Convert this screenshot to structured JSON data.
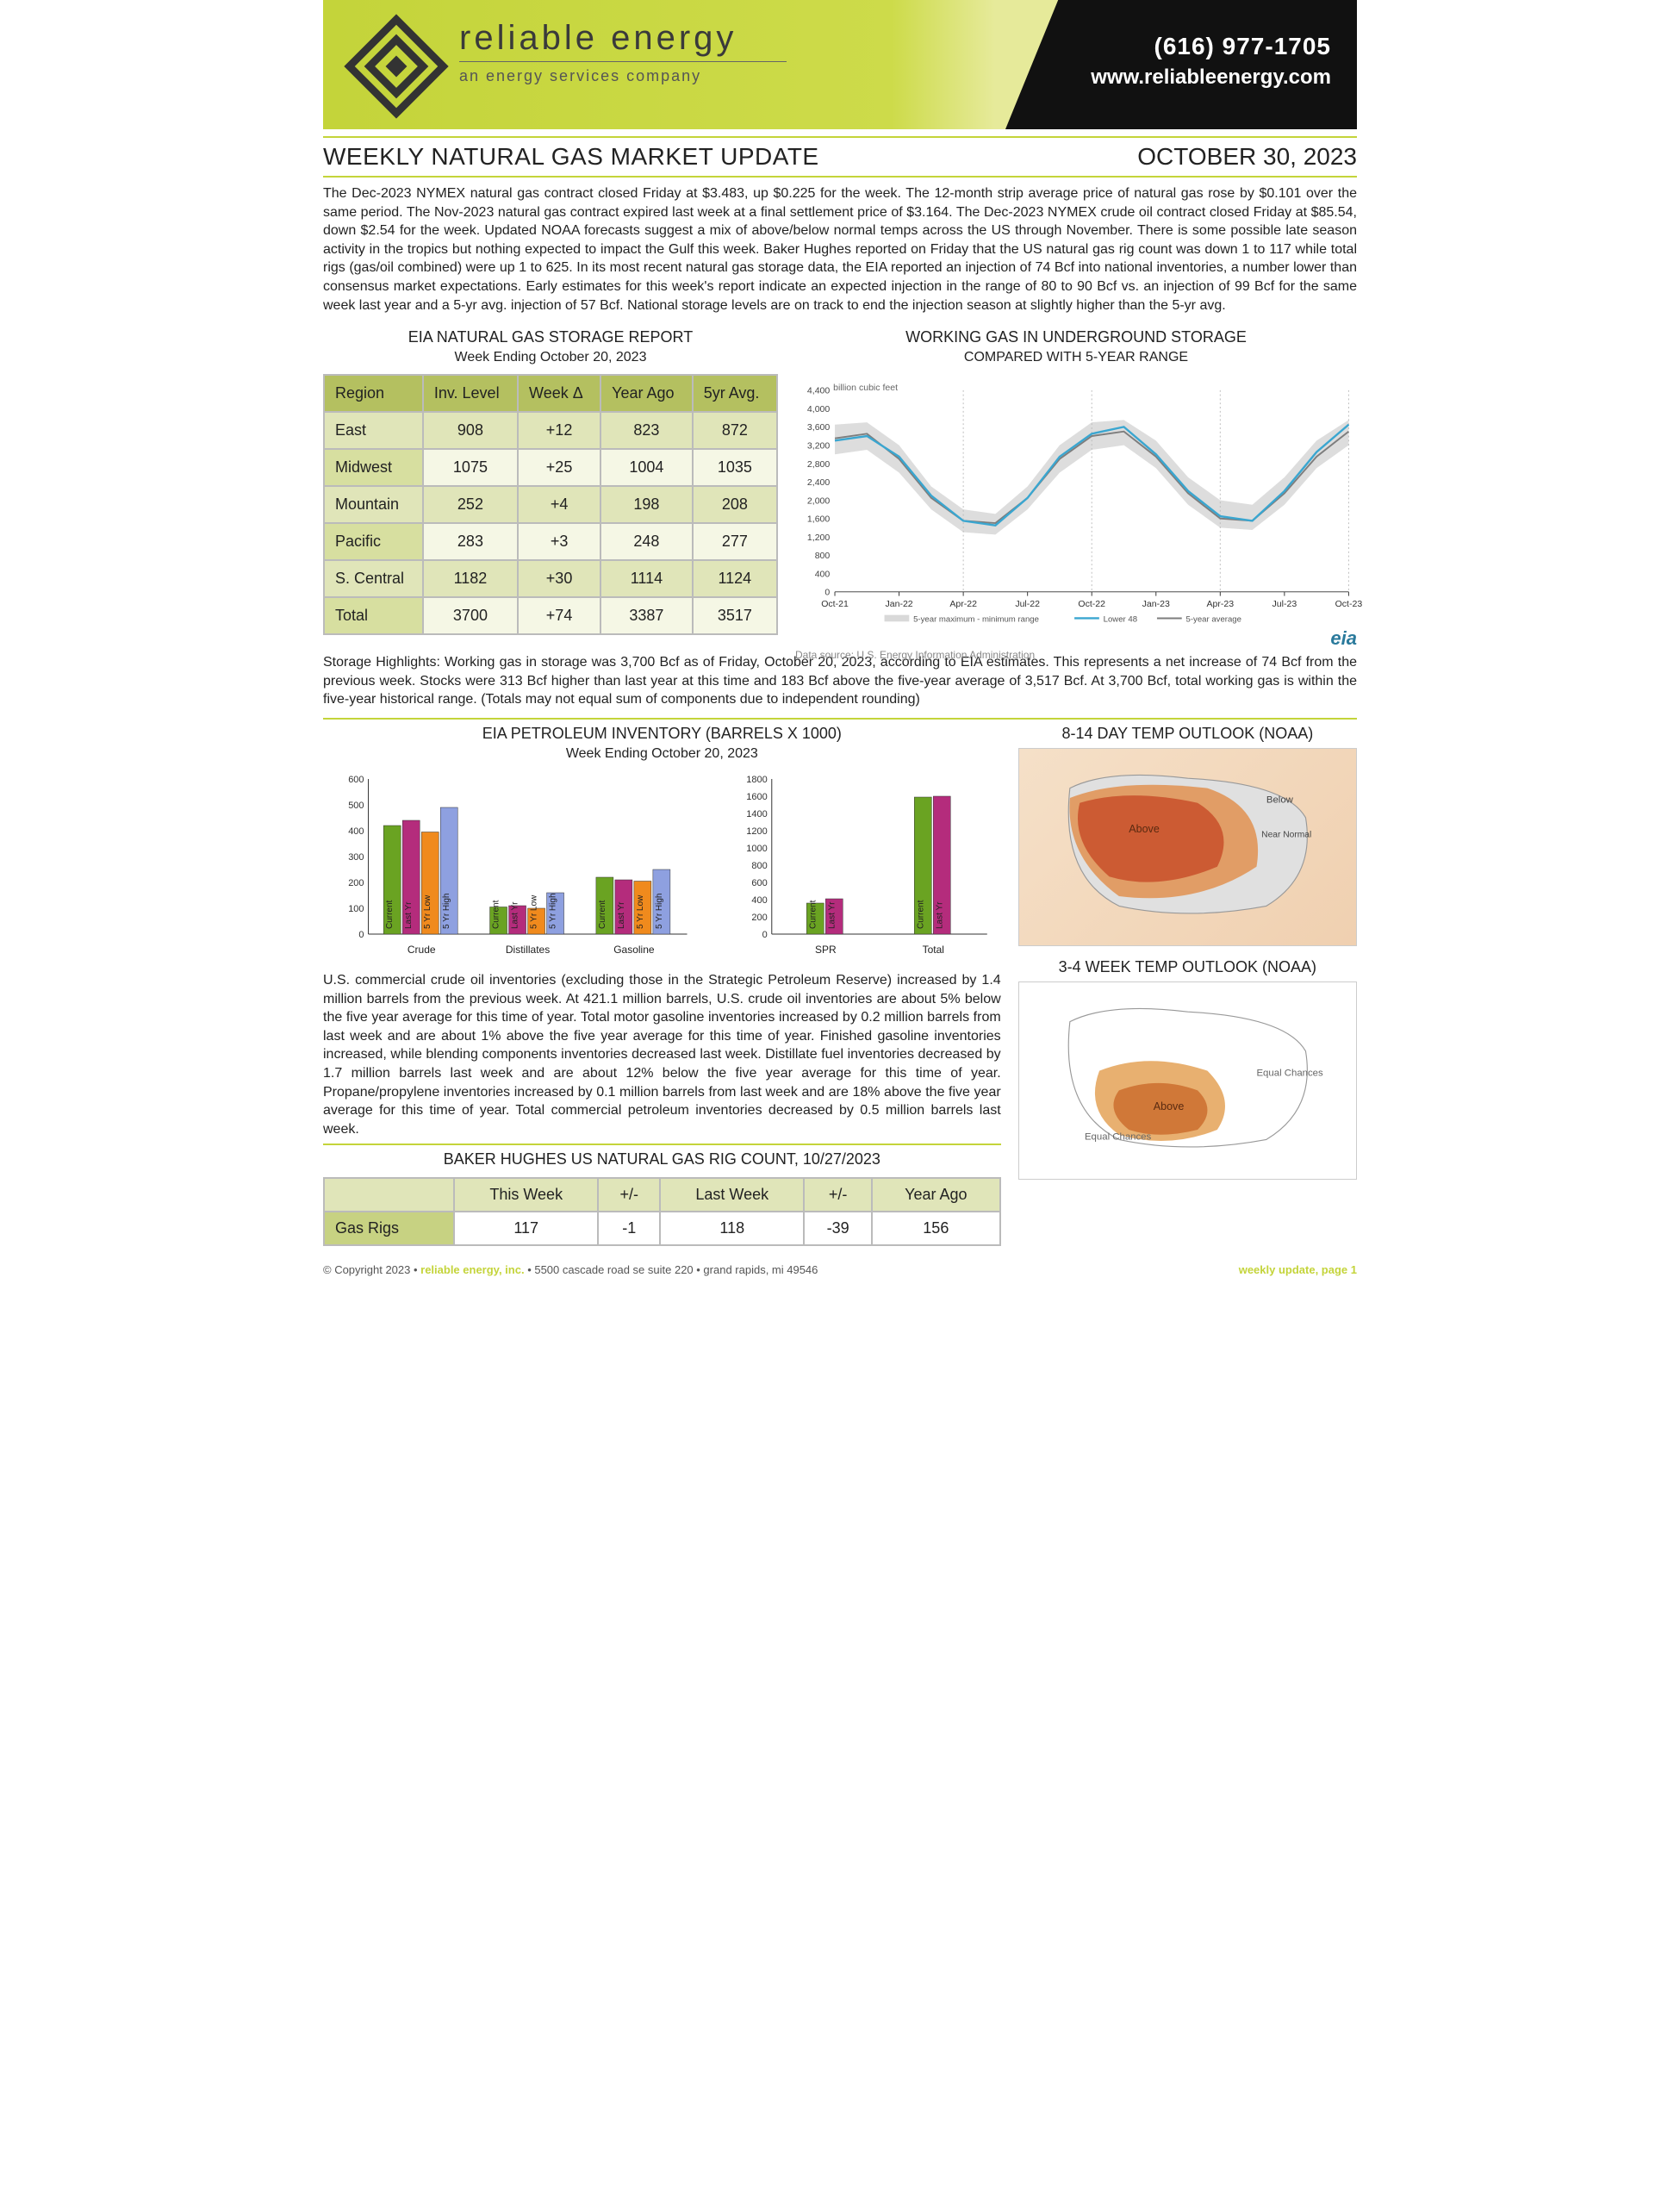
{
  "header": {
    "company": "reliable energy",
    "tagline": "an energy services company",
    "phone": "(616) 977-1705",
    "website": "www.reliableenergy.com"
  },
  "title": "WEEKLY NATURAL GAS MARKET UPDATE",
  "date": "OCTOBER 30, 2023",
  "lede": "The Dec-2023 NYMEX natural gas contract closed Friday at $3.483, up $0.225 for the week. The 12-month strip average price of natural gas rose by $0.101 over the same period. The Nov-2023 natural gas contract expired last week at a final settlement price of $3.164. The Dec-2023 NYMEX crude oil contract closed Friday at $85.54, down $2.54 for the week. Updated NOAA forecasts suggest a mix of above/below normal temps across the US through November. There is some possible late season activity in the tropics but nothing expected to impact the Gulf this week. Baker Hughes reported on Friday that the US natural gas rig count was down 1 to 117 while total rigs (gas/oil combined) were up 1 to 625. In its most recent natural gas storage data, the EIA reported an injection of 74 Bcf into national inventories, a number lower than consensus market expectations. Early estimates for this week's report indicate an expected injection in the range of 80 to 90 Bcf vs. an injection of 99 Bcf for the same week last year and a 5-yr avg. injection of 57 Bcf. National storage levels are on track to end the injection season at slightly higher than the 5-yr avg.",
  "storage_report": {
    "title": "EIA NATURAL GAS STORAGE REPORT",
    "subtitle": "Week Ending October 20, 2023",
    "columns": [
      "Region",
      "Inv. Level",
      "Week Δ",
      "Year Ago",
      "5yr Avg."
    ],
    "rows": [
      [
        "East",
        "908",
        "+12",
        "823",
        "872"
      ],
      [
        "Midwest",
        "1075",
        "+25",
        "1004",
        "1035"
      ],
      [
        "Mountain",
        "252",
        "+4",
        "198",
        "208"
      ],
      [
        "Pacific",
        "283",
        "+3",
        "248",
        "277"
      ],
      [
        "S. Central",
        "1182",
        "+30",
        "1114",
        "1124"
      ],
      [
        "Total",
        "3700",
        "+74",
        "3387",
        "3517"
      ]
    ]
  },
  "storage_chart": {
    "title": "WORKING GAS IN UNDERGROUND STORAGE",
    "subtitle": "COMPARED WITH 5-YEAR RANGE",
    "ylabel": "billion cubic feet",
    "ylim": [
      0,
      4400
    ],
    "ytick_step": 400,
    "xticks": [
      "Oct-21",
      "Jan-22",
      "Apr-22",
      "Jul-22",
      "Oct-22",
      "Jan-23",
      "Apr-23",
      "Jul-23",
      "Oct-23"
    ],
    "band_color": "#d9d9d9",
    "line_lower48_color": "#3aa6d0",
    "line_5yr_color": "#7d7d7d",
    "band_top": [
      3650,
      3700,
      3200,
      2300,
      1800,
      1700,
      2300,
      3200,
      3700,
      3750,
      3300,
      2500,
      2000,
      1900,
      2500,
      3300,
      3750
    ],
    "band_bottom": [
      3000,
      3100,
      2600,
      1800,
      1300,
      1250,
      1800,
      2600,
      3100,
      3200,
      2700,
      1900,
      1400,
      1350,
      1900,
      2700,
      3200
    ],
    "lower48": [
      3300,
      3400,
      2950,
      2100,
      1550,
      1450,
      2050,
      2950,
      3450,
      3600,
      3000,
      2200,
      1650,
      1550,
      2200,
      3050,
      3650
    ],
    "avg5yr": [
      3350,
      3450,
      2900,
      2050,
      1550,
      1500,
      2050,
      2900,
      3400,
      3500,
      2950,
      2150,
      1600,
      1550,
      2150,
      2950,
      3500
    ],
    "legend": [
      "5-year maximum - minimum range",
      "Lower 48",
      "5-year average"
    ],
    "source": "Data source:  U.S. Energy Information Administration",
    "eia_label": "eia"
  },
  "storage_highlight": "Storage Highlights: Working gas in storage was 3,700 Bcf as of Friday, October 20, 2023, according to EIA estimates. This represents a net increase of 74 Bcf from the previous week. Stocks were 313 Bcf higher than last year at this time and 183 Bcf above the five-year average of 3,517 Bcf. At 3,700 Bcf, total working gas is within the five-year historical range. (Totals may not equal sum of components due to independent rounding)",
  "petroleum": {
    "title": "EIA PETROLEUM INVENTORY (BARRELS X 1000)",
    "subtitle": "Week Ending October 20, 2023",
    "panel1": {
      "ylim": [
        0,
        600
      ],
      "ytick_step": 100,
      "groups": [
        "Crude",
        "Distillates",
        "Gasoline"
      ],
      "series": [
        "Current",
        "Last Yr",
        "5 Yr Low",
        "5 Yr High"
      ],
      "colors": [
        "#6aa322",
        "#b42c7c",
        "#f08a1d",
        "#8ea0e0"
      ],
      "values": [
        [
          420,
          440,
          395,
          490
        ],
        [
          105,
          110,
          100,
          160
        ],
        [
          220,
          210,
          205,
          250
        ]
      ]
    },
    "panel2": {
      "ylim": [
        0,
        1800
      ],
      "ytick_step": 200,
      "groups": [
        "SPR",
        "Total"
      ],
      "series": [
        "Current",
        "Last Yr"
      ],
      "colors": [
        "#6aa322",
        "#b42c7c"
      ],
      "values": [
        [
          360,
          410
        ],
        [
          1590,
          1600
        ]
      ]
    }
  },
  "petroleum_para": "U.S. commercial crude oil inventories (excluding those in the Strategic Petroleum Reserve) increased by 1.4 million barrels from the previous week. At 421.1 million barrels, U.S. crude oil inventories are about 5% below the five year average for this time of year. Total motor gasoline inventories increased by 0.2 million barrels from last week and are about 1% above the five year average for this time of year. Finished gasoline inventories increased, while blending components inventories decreased last week. Distillate fuel inventories decreased by 1.7 million barrels last week and are about 12% below the five year average for this time of year. Propane/propylene inventories increased by 0.1 million barrels from last week and are 18% above the five year average for this time of year. Total commercial petroleum inventories decreased by 0.5 million barrels last week.",
  "rig": {
    "title": "BAKER HUGHES US NATURAL GAS RIG COUNT, 10/27/2023",
    "columns": [
      "",
      "This Week",
      "+/-",
      "Last Week",
      "+/-",
      "Year Ago"
    ],
    "rows": [
      [
        "Gas Rigs",
        "117",
        "-1",
        "118",
        "-39",
        "156"
      ]
    ]
  },
  "outlook1_title": "8-14 DAY TEMP OUTLOOK (NOAA)",
  "outlook2_title": "3-4 WEEK TEMP OUTLOOK (NOAA)",
  "footer": {
    "copyright": "© Copyright 2023  •  ",
    "brand": "reliable energy, inc.",
    "addr": "  •  5500 cascade road se  suite 220  •  grand rapids, mi  49546",
    "right": "weekly update, page 1"
  }
}
